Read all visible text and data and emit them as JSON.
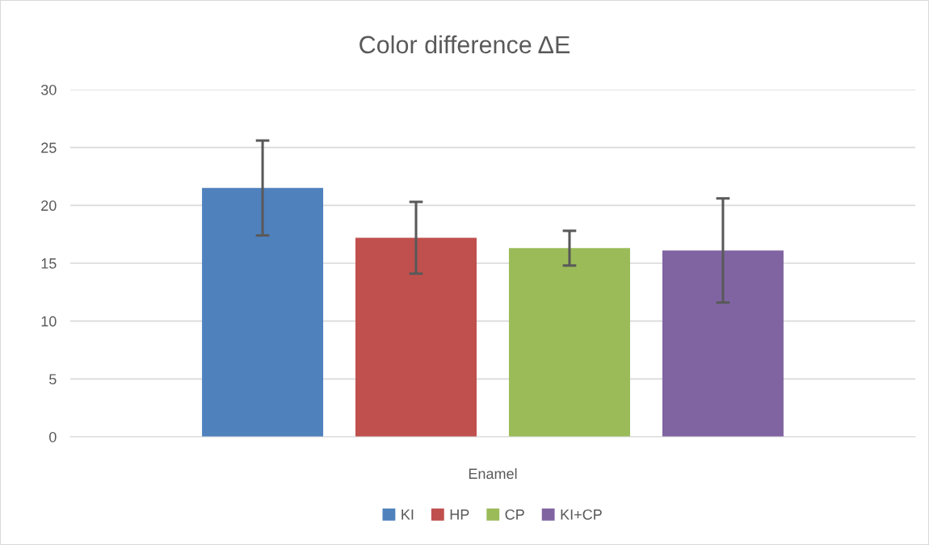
{
  "chart_data": {
    "type": "bar",
    "title": "Color difference ΔE",
    "categories": [
      "Enamel"
    ],
    "series": [
      {
        "name": "KI",
        "color": "#4f81bd",
        "values": [
          21.5
        ],
        "errors": [
          4.1
        ]
      },
      {
        "name": "HP",
        "color": "#c0504d",
        "values": [
          17.2
        ],
        "errors": [
          3.1
        ]
      },
      {
        "name": "CP",
        "color": "#9bbb59",
        "values": [
          16.3
        ],
        "errors": [
          1.5
        ]
      },
      {
        "name": "KI+CP",
        "color": "#8064a2",
        "values": [
          16.1
        ],
        "errors": [
          4.5
        ]
      }
    ],
    "ylim": [
      0,
      30
    ],
    "yticks": [
      0,
      5,
      10,
      15,
      20,
      25,
      30
    ],
    "grid": "y",
    "legend": "bottom"
  }
}
